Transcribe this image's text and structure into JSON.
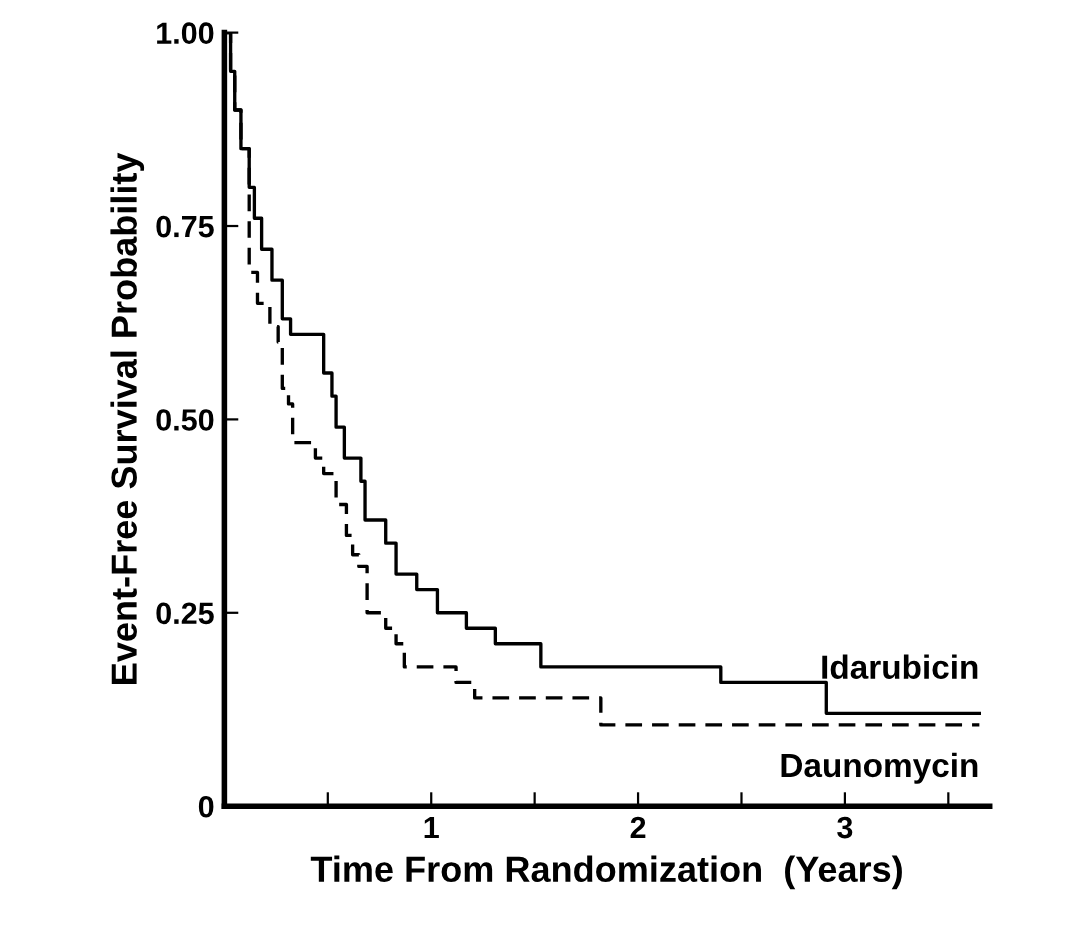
{
  "chart_data": {
    "type": "step",
    "xlabel": "Time From Randomization  (Years)",
    "ylabel": "Event-Free Survival Probability",
    "xlim": [
      0,
      3.7
    ],
    "ylim": [
      0,
      1.0
    ],
    "xticks": [
      {
        "value": 0.5,
        "label": null
      },
      1,
      {
        "value": 1.5,
        "label": null
      },
      2,
      {
        "value": 2.5,
        "label": null
      },
      3,
      {
        "value": 3.5,
        "label": null
      }
    ],
    "yticks": [
      0,
      0.25,
      {
        "value": 0.5,
        "label": "0.50"
      },
      0.75,
      {
        "value": 1.0,
        "label": "1.00"
      }
    ],
    "grid": false,
    "legend": false,
    "series": [
      {
        "name": "Idarubicin",
        "color": "#000000",
        "line_style": "solid",
        "x": [
          0,
          0.03,
          0.05,
          0.08,
          0.12,
          0.145,
          0.18,
          0.23,
          0.28,
          0.32,
          0.48,
          0.52,
          0.54,
          0.58,
          0.66,
          0.68,
          0.78,
          0.83,
          0.93,
          1.03,
          1.17,
          1.31,
          1.53,
          2.4,
          2.91,
          3.65
        ],
        "values": [
          1.0,
          0.95,
          0.9,
          0.85,
          0.8,
          0.76,
          0.72,
          0.68,
          0.63,
          0.61,
          0.56,
          0.53,
          0.49,
          0.45,
          0.42,
          0.37,
          0.34,
          0.3,
          0.28,
          0.25,
          0.23,
          0.21,
          0.18,
          0.16,
          0.12,
          0.12
        ]
      },
      {
        "name": "Daunomycin",
        "color": "#000000",
        "line_style": "dashed",
        "x": [
          0,
          0.03,
          0.05,
          0.08,
          0.12,
          0.16,
          0.22,
          0.26,
          0.28,
          0.31,
          0.33,
          0.44,
          0.48,
          0.54,
          0.59,
          0.62,
          0.65,
          0.69,
          0.78,
          0.83,
          0.87,
          1.12,
          1.21,
          1.82,
          3.65
        ],
        "values": [
          1.0,
          0.95,
          0.9,
          0.85,
          0.69,
          0.65,
          0.62,
          0.6,
          0.54,
          0.52,
          0.47,
          0.45,
          0.43,
          0.39,
          0.35,
          0.325,
          0.31,
          0.25,
          0.23,
          0.21,
          0.18,
          0.16,
          0.14,
          0.105,
          0.105
        ]
      }
    ]
  }
}
